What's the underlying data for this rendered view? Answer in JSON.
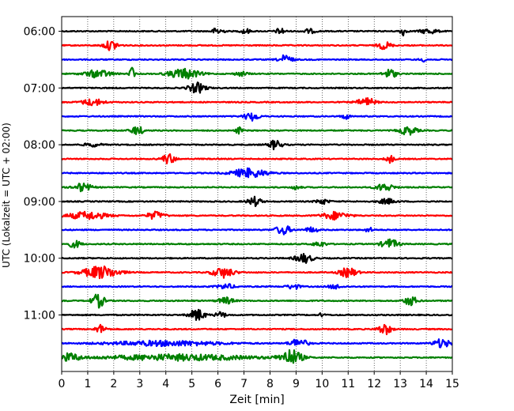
{
  "chart_data": {
    "type": "line",
    "title": "",
    "xlabel": "Zeit  [min]",
    "ylabel": "UTC (Lokalzeit = UTC + 02:00)",
    "xlim": [
      0,
      15
    ],
    "x_ticks": [
      "0",
      "1",
      "2",
      "3",
      "4",
      "5",
      "6",
      "7",
      "8",
      "9",
      "10",
      "11",
      "12",
      "13",
      "14",
      "15"
    ],
    "y_ticks": [
      "06:00",
      "07:00",
      "08:00",
      "09:00",
      "10:00",
      "11:00"
    ],
    "grid": "vertical dotted lines at each minute",
    "colors": [
      "#000000",
      "#ff0000",
      "#0000ff",
      "#008000"
    ],
    "traces": [
      {
        "color": "#000000",
        "bursts": [
          [
            6.0,
            0.25,
            0.45
          ],
          [
            7.05,
            0.2,
            0.35
          ],
          [
            8.4,
            0.2,
            0.4
          ],
          [
            9.5,
            0.3,
            0.25
          ],
          [
            13.1,
            0.15,
            0.5
          ],
          [
            14.1,
            0.4,
            0.3
          ]
        ]
      },
      {
        "color": "#ff0000",
        "bursts": [
          [
            1.9,
            0.35,
            0.55
          ],
          [
            12.4,
            0.3,
            0.45
          ]
        ]
      },
      {
        "color": "#0000ff",
        "bursts": [
          [
            8.6,
            0.3,
            0.55
          ],
          [
            13.9,
            0.2,
            0.2
          ]
        ]
      },
      {
        "color": "#008000",
        "bursts": [
          [
            1.4,
            0.6,
            0.45
          ],
          [
            2.7,
            0.1,
            0.9
          ],
          [
            4.7,
            0.7,
            0.6
          ],
          [
            6.9,
            0.3,
            0.25
          ],
          [
            12.6,
            0.3,
            0.55
          ]
        ]
      },
      {
        "color": "#000000",
        "bursts": [
          [
            5.2,
            0.4,
            0.6
          ]
        ]
      },
      {
        "color": "#ff0000",
        "bursts": [
          [
            1.2,
            0.5,
            0.4
          ],
          [
            11.7,
            0.4,
            0.5
          ]
        ]
      },
      {
        "color": "#0000ff",
        "bursts": [
          [
            7.3,
            0.35,
            0.5
          ],
          [
            10.9,
            0.2,
            0.3
          ]
        ]
      },
      {
        "color": "#008000",
        "bursts": [
          [
            2.9,
            0.3,
            0.5
          ],
          [
            6.8,
            0.15,
            0.4
          ],
          [
            13.3,
            0.4,
            0.5
          ]
        ]
      },
      {
        "color": "#000000",
        "bursts": [
          [
            1.2,
            0.4,
            0.2
          ],
          [
            8.2,
            0.3,
            0.55
          ]
        ]
      },
      {
        "color": "#ff0000",
        "bursts": [
          [
            4.1,
            0.3,
            0.6
          ],
          [
            12.6,
            0.2,
            0.45
          ]
        ]
      },
      {
        "color": "#0000ff",
        "bursts": [
          [
            7.2,
            0.8,
            0.55
          ]
        ]
      },
      {
        "color": "#008000",
        "bursts": [
          [
            0.8,
            0.4,
            0.5
          ],
          [
            9.0,
            0.2,
            0.25
          ],
          [
            12.4,
            0.4,
            0.45
          ]
        ]
      },
      {
        "color": "#000000",
        "bursts": [
          [
            7.4,
            0.3,
            0.55
          ],
          [
            10.0,
            0.3,
            0.3
          ],
          [
            12.5,
            0.4,
            0.3
          ]
        ]
      },
      {
        "color": "#ff0000",
        "bursts": [
          [
            1.0,
            0.9,
            0.45
          ],
          [
            3.6,
            0.4,
            0.45
          ],
          [
            10.5,
            0.6,
            0.45
          ]
        ]
      },
      {
        "color": "#0000ff",
        "bursts": [
          [
            8.5,
            0.35,
            0.55
          ],
          [
            9.6,
            0.3,
            0.3
          ],
          [
            11.8,
            0.2,
            0.25
          ]
        ]
      },
      {
        "color": "#008000",
        "bursts": [
          [
            0.5,
            0.3,
            0.4
          ],
          [
            9.9,
            0.3,
            0.3
          ],
          [
            12.6,
            0.4,
            0.55
          ]
        ]
      },
      {
        "color": "#000000",
        "bursts": [
          [
            9.3,
            0.4,
            0.55
          ]
        ]
      },
      {
        "color": "#ff0000",
        "bursts": [
          [
            1.5,
            0.8,
            0.75
          ],
          [
            6.2,
            0.5,
            0.6
          ],
          [
            11.0,
            0.4,
            0.55
          ]
        ]
      },
      {
        "color": "#0000ff",
        "bursts": [
          [
            6.3,
            0.4,
            0.3
          ],
          [
            8.9,
            0.3,
            0.3
          ],
          [
            10.5,
            0.3,
            0.25
          ]
        ]
      },
      {
        "color": "#008000",
        "bursts": [
          [
            1.4,
            0.3,
            0.8
          ],
          [
            6.3,
            0.35,
            0.4
          ],
          [
            13.4,
            0.3,
            0.55
          ]
        ]
      },
      {
        "color": "#000000",
        "bursts": [
          [
            5.2,
            0.35,
            0.7
          ],
          [
            6.1,
            0.25,
            0.35
          ],
          [
            10.0,
            0.1,
            0.35
          ]
        ]
      },
      {
        "color": "#ff0000",
        "bursts": [
          [
            1.5,
            0.25,
            0.5
          ],
          [
            12.4,
            0.3,
            0.65
          ]
        ]
      },
      {
        "color": "#0000ff",
        "bursts": [
          [
            4.0,
            2.5,
            0.3
          ],
          [
            9.1,
            0.4,
            0.55
          ],
          [
            14.6,
            0.4,
            0.5
          ]
        ]
      },
      {
        "color": "#008000",
        "bursts": [
          [
            0.3,
            0.5,
            0.45
          ],
          [
            4.5,
            3.5,
            0.35
          ],
          [
            8.8,
            0.5,
            0.9
          ]
        ]
      }
    ]
  }
}
